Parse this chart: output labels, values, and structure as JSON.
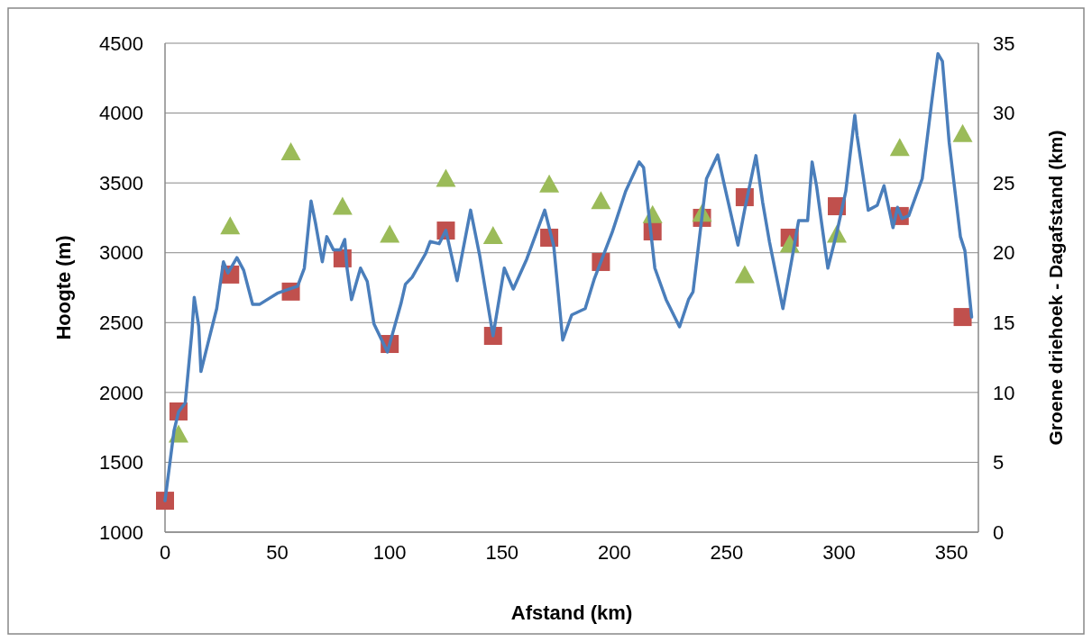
{
  "chart_data": {
    "type": "line",
    "xlabel": "Afstand (km)",
    "ylabel": "Hoogte (m)",
    "y2label": "Groene driehoek - Dagafstand (km)",
    "xlim": [
      0,
      362
    ],
    "xticks": [
      0,
      50,
      100,
      150,
      200,
      250,
      300,
      350
    ],
    "ylim": [
      1000,
      4500
    ],
    "yticks": [
      1000,
      1500,
      2000,
      2500,
      3000,
      3500,
      4000,
      4500
    ],
    "y2lim": [
      0,
      35
    ],
    "y2ticks": [
      0,
      5,
      10,
      15,
      20,
      25,
      30,
      35
    ],
    "grid": "y",
    "series": [
      {
        "color": "#4a7ebb",
        "marker": "none",
        "line_style": "solid",
        "x": [
          0,
          4,
          6,
          9,
          12,
          13,
          15,
          16,
          19,
          23,
          26,
          28,
          32,
          35,
          39,
          42,
          50,
          59,
          62,
          65,
          67,
          70,
          72,
          75,
          78,
          80,
          81,
          83,
          87,
          90,
          93,
          99,
          105,
          107,
          110,
          116,
          118,
          122,
          125,
          130,
          136,
          140,
          146,
          151,
          155,
          161,
          169,
          173,
          177,
          181,
          187,
          191,
          199,
          205,
          211,
          213,
          218,
          223,
          229,
          233,
          235,
          241,
          246,
          249,
          255,
          258,
          263,
          266,
          269,
          275,
          279,
          282,
          286,
          288,
          290,
          292,
          295,
          299,
          303,
          307,
          308,
          313,
          317,
          320,
          324,
          326,
          328,
          331,
          337,
          341,
          344,
          346,
          349,
          354,
          356,
          359
        ],
        "values": [
          1225,
          1725,
          1860,
          1925,
          2440,
          2680,
          2475,
          2150,
          2345,
          2600,
          2935,
          2855,
          2965,
          2875,
          2630,
          2630,
          2710,
          2760,
          2890,
          3370,
          3210,
          2935,
          3115,
          3020,
          3020,
          3095,
          2890,
          2665,
          2890,
          2795,
          2490,
          2290,
          2635,
          2775,
          2825,
          2995,
          3080,
          3065,
          3160,
          2800,
          3305,
          2985,
          2405,
          2890,
          2740,
          2955,
          3305,
          3050,
          2375,
          2555,
          2600,
          2810,
          3145,
          3440,
          3650,
          3610,
          2890,
          2665,
          2470,
          2665,
          2720,
          3530,
          3700,
          3480,
          3055,
          3310,
          3695,
          3360,
          3080,
          2600,
          2955,
          3230,
          3230,
          3650,
          3475,
          3240,
          2890,
          3145,
          3440,
          3985,
          3840,
          3305,
          3340,
          3480,
          3180,
          3325,
          3245,
          3265,
          3530,
          4050,
          4425,
          4370,
          3790,
          3115,
          3015,
          2540
        ]
      },
      {
        "type": "scatter",
        "color": "#c0504d",
        "marker": "square",
        "x": [
          0,
          6,
          29,
          56,
          79,
          100,
          125,
          146,
          171,
          194,
          217,
          239,
          258,
          278,
          299,
          327,
          355
        ],
        "values": [
          1225,
          1864,
          2844,
          2722,
          2960,
          2347,
          3159,
          2405,
          3108,
          2934,
          3153,
          3250,
          3398,
          3108,
          3333,
          3263,
          2540
        ]
      },
      {
        "type": "scatter",
        "axis": "y2",
        "color": "#9bbb59",
        "marker": "triangle",
        "x": [
          6,
          29,
          56,
          79,
          100,
          125,
          146,
          171,
          194,
          217,
          239,
          258,
          278,
          299,
          327,
          355
        ],
        "values": [
          7.0,
          21.9,
          27.2,
          23.3,
          21.3,
          25.3,
          21.2,
          24.9,
          23.7,
          22.7,
          22.8,
          18.4,
          20.6,
          21.3,
          27.5,
          28.5
        ]
      }
    ]
  }
}
